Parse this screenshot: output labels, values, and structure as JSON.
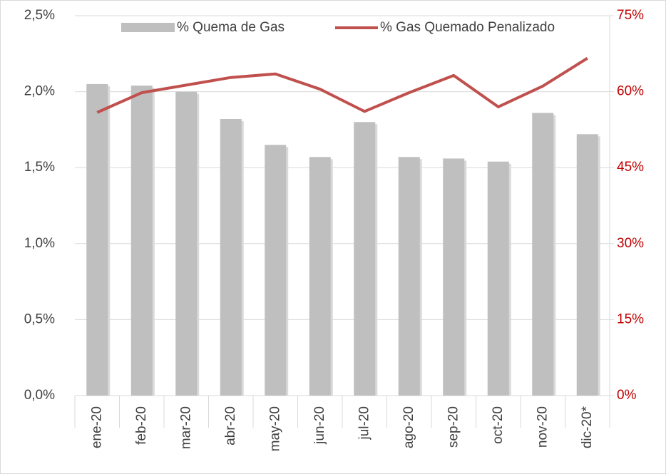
{
  "chart_data": {
    "type": "bar-line",
    "categories": [
      "ene-20",
      "feb-20",
      "mar-20",
      "abr-20",
      "may-20",
      "jun-20",
      "jul-20",
      "ago-20",
      "sep-20",
      "oct-20",
      "nov-20",
      "dic-20*"
    ],
    "series": [
      {
        "name": "% Quema de Gas",
        "type": "bar",
        "color": "#bfbfbf",
        "values": [
          2.05,
          2.04,
          2.0,
          1.82,
          1.65,
          1.57,
          1.8,
          1.57,
          1.56,
          1.54,
          1.86,
          1.72
        ]
      },
      {
        "name": "% Gas Quemado Penalizado",
        "type": "line",
        "axis": "y2",
        "color": "#c0504d",
        "values": [
          55.9,
          59.8,
          61.3,
          62.8,
          63.5,
          60.5,
          56.1,
          59.8,
          63.2,
          57.0,
          61.1,
          66.6
        ]
      }
    ],
    "ylim": [
      0,
      2.5
    ],
    "yticks": [
      {
        "value": 0,
        "label": "0,0%"
      },
      {
        "value": 0.5,
        "label": "0,5%"
      },
      {
        "value": 1,
        "label": "1,0%"
      },
      {
        "value": 1.5,
        "label": "1,5%"
      },
      {
        "value": 2,
        "label": "2,0%"
      },
      {
        "value": 2.5,
        "label": "2,5%"
      }
    ],
    "y2lim": [
      0,
      75
    ],
    "y2ticks": [
      {
        "value": 0,
        "label": "0%"
      },
      {
        "value": 15,
        "label": "15%"
      },
      {
        "value": 30,
        "label": "30%"
      },
      {
        "value": 45,
        "label": "45%"
      },
      {
        "value": 60,
        "label": "60%"
      },
      {
        "value": 75,
        "label": "75%"
      }
    ],
    "y2color": "#c00000",
    "grid": true,
    "legend": "top"
  }
}
